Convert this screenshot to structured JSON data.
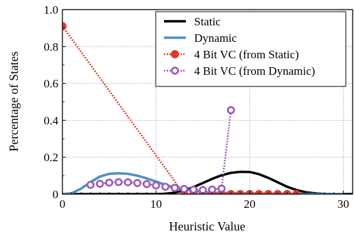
{
  "chart_data": {
    "type": "line",
    "xlabel": "Heuristic Value",
    "ylabel": "Percentage of States",
    "xlim": [
      0,
      31
    ],
    "ylim": [
      0,
      1.0
    ],
    "x_ticks": [
      0,
      10,
      20,
      30
    ],
    "y_ticks": [
      0,
      0.2,
      0.4,
      0.6,
      0.8,
      1.0
    ],
    "x_tick_labels": [
      "0",
      "10",
      "20",
      "30"
    ],
    "y_tick_labels": [
      "0",
      "0.2",
      "0.4",
      "0.6",
      "0.8",
      "1.0"
    ],
    "grid": true,
    "legend_position": "top-right",
    "series": [
      {
        "name": "Static",
        "style": "line",
        "color": "#000000",
        "x": [
          0,
          1,
          2,
          3,
          4,
          5,
          6,
          7,
          8,
          9,
          10,
          11,
          12,
          13,
          14,
          15,
          16,
          17,
          18,
          19,
          20,
          21,
          22,
          23,
          24,
          25,
          26,
          27,
          28,
          29,
          30,
          31
        ],
        "y": [
          0,
          0,
          0,
          0,
          0,
          0,
          0,
          0,
          0,
          0,
          0,
          0.002,
          0.008,
          0.02,
          0.038,
          0.06,
          0.083,
          0.102,
          0.115,
          0.121,
          0.12,
          0.108,
          0.088,
          0.064,
          0.04,
          0.022,
          0.01,
          0.004,
          0.001,
          0,
          0,
          0
        ]
      },
      {
        "name": "Dynamic",
        "style": "line",
        "color": "#4a90c4",
        "x": [
          0,
          1,
          2,
          3,
          4,
          5,
          6,
          7,
          8,
          9,
          10,
          11,
          12,
          13,
          14,
          15,
          16,
          17,
          18,
          19,
          20,
          21,
          22,
          23,
          24,
          25,
          26,
          27,
          28,
          29,
          30
        ],
        "y": [
          0,
          0.005,
          0.03,
          0.065,
          0.095,
          0.11,
          0.113,
          0.11,
          0.1,
          0.085,
          0.068,
          0.05,
          0.035,
          0.024,
          0.016,
          0.011,
          0.008,
          0.006,
          0.005,
          0.004,
          0.004,
          0.003,
          0.003,
          0.002,
          0.002,
          0.001,
          0.001,
          0.001,
          0,
          0,
          0
        ]
      },
      {
        "name": "4 Bit VC (from Static)",
        "style": "dotted-filled-markers",
        "color": "#e0392b",
        "x": [
          0,
          13,
          14,
          15,
          16,
          17,
          18,
          19,
          20,
          21,
          22,
          23,
          24,
          25
        ],
        "y": [
          0.91,
          0,
          0,
          0,
          0,
          0,
          0,
          0,
          0,
          0,
          0,
          0,
          0,
          0
        ]
      },
      {
        "name": "4 Bit VC (from Dynamic)",
        "style": "dotted-hollow-markers",
        "color": "#9b59b6",
        "x": [
          3,
          4,
          5,
          6,
          7,
          8,
          9,
          10,
          11,
          12,
          13,
          14,
          15,
          16,
          17,
          18
        ],
        "y": [
          0.05,
          0.056,
          0.062,
          0.065,
          0.064,
          0.06,
          0.054,
          0.047,
          0.04,
          0.034,
          0.028,
          0.024,
          0.022,
          0.025,
          0.03,
          0.455
        ]
      }
    ]
  }
}
